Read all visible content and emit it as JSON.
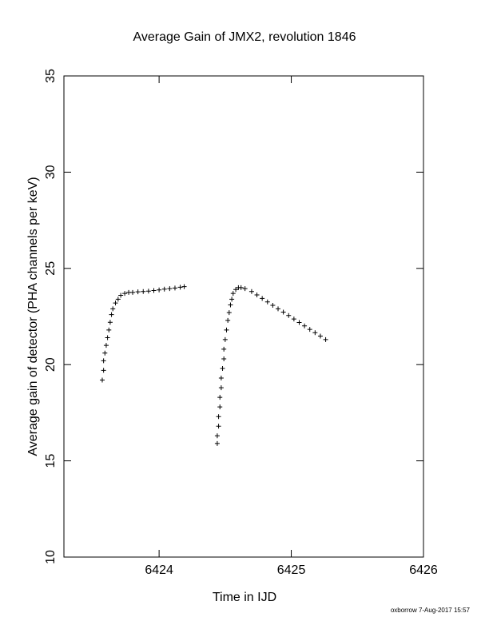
{
  "chart_data": {
    "type": "scatter",
    "title": "Average Gain of JMX2, revolution 1846",
    "x_label": "Time in IJD",
    "y_label": "Average gain of detector (PHA channels per keV)",
    "footer": "oxborrow  7-Aug-2017 15:57",
    "color": "#000000",
    "marker": "plus",
    "x": [
      6423.57,
      6423.58,
      6423.58,
      6423.59,
      6423.6,
      6423.61,
      6423.62,
      6423.63,
      6423.64,
      6423.65,
      6423.67,
      6423.69,
      6423.71,
      6423.74,
      6423.77,
      6423.8,
      6423.84,
      6423.88,
      6423.92,
      6423.96,
      6424.0,
      6424.04,
      6424.08,
      6424.12,
      6424.16,
      6424.19,
      6424.44,
      6424.44,
      6424.45,
      6424.45,
      6424.46,
      6424.46,
      6424.47,
      6424.47,
      6424.48,
      6424.49,
      6424.49,
      6424.5,
      6424.51,
      6424.52,
      6424.53,
      6424.54,
      6424.55,
      6424.56,
      6424.58,
      6424.6,
      6424.62,
      6424.65,
      6424.7,
      6424.74,
      6424.78,
      6424.82,
      6424.86,
      6424.9,
      6424.94,
      6424.98,
      6425.02,
      6425.06,
      6425.1,
      6425.14,
      6425.18,
      6425.22,
      6425.26
    ],
    "values": [
      19.2,
      19.7,
      20.2,
      20.6,
      21.0,
      21.4,
      21.8,
      22.2,
      22.6,
      22.9,
      23.2,
      23.4,
      23.6,
      23.7,
      23.75,
      23.75,
      23.78,
      23.8,
      23.82,
      23.85,
      23.88,
      23.92,
      23.95,
      23.98,
      24.02,
      24.05,
      15.9,
      16.3,
      16.8,
      17.3,
      17.8,
      18.3,
      18.8,
      19.3,
      19.8,
      20.3,
      20.8,
      21.3,
      21.8,
      22.3,
      22.7,
      23.1,
      23.4,
      23.7,
      23.9,
      24.0,
      24.0,
      23.95,
      23.8,
      23.62,
      23.44,
      23.26,
      23.08,
      22.9,
      22.73,
      22.55,
      22.37,
      22.19,
      22.01,
      21.83,
      21.66,
      21.48,
      21.3
    ],
    "xlim": [
      6423.28,
      6426
    ],
    "xticks": [
      6424,
      6425,
      6426
    ],
    "ylim": [
      10,
      35
    ],
    "yticks": [
      10,
      15,
      20,
      25,
      30,
      35
    ]
  }
}
